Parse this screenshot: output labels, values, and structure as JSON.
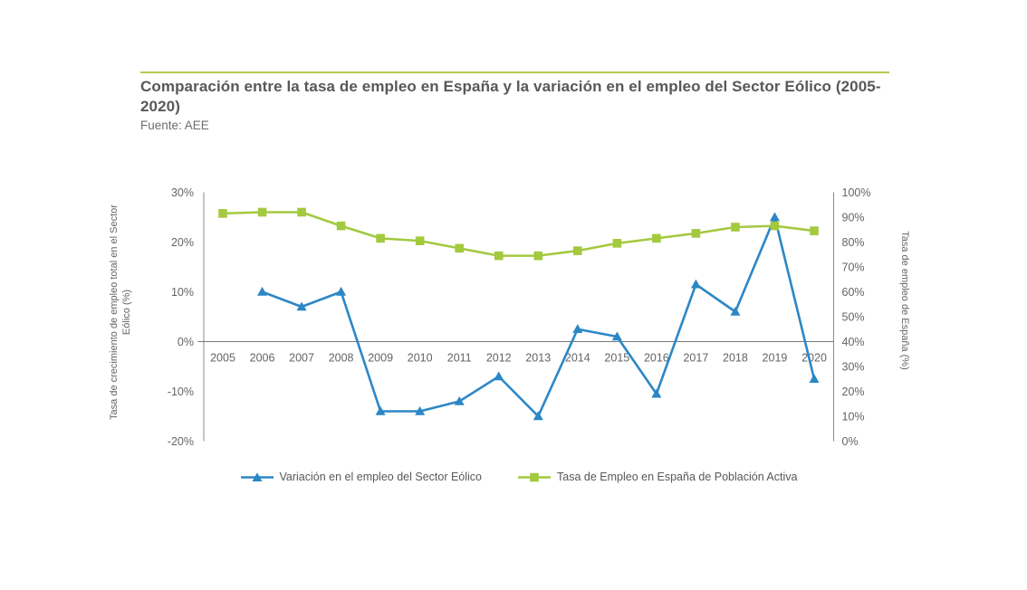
{
  "header": {
    "title": "Comparación entre la tasa de empleo en España y la variación en el empleo del Sector Eólico (2005-2020)",
    "source": "Fuente: AEE"
  },
  "colors": {
    "top_rule": "#b4cc4f",
    "wind_series_blue": "#2b87c6",
    "employment_series_green": "#a3c93f",
    "title_text": "#57585a",
    "axis_text": "#636468"
  },
  "chart_data": {
    "type": "line",
    "title": "Comparación entre la tasa de empleo en España y la variación en el empleo del Sector Eólico (2005-2020)",
    "source": "Fuente: AEE",
    "categories": [
      "2005",
      "2006",
      "2007",
      "2008",
      "2009",
      "2010",
      "2011",
      "2012",
      "2013",
      "2014",
      "2015",
      "2016",
      "2017",
      "2018",
      "2019",
      "2020"
    ],
    "series": [
      {
        "name": "Variación en el empleo del Sector Eólico",
        "axis": "left",
        "color": "#2b87c6",
        "marker": "triangle",
        "values": [
          null,
          10,
          7,
          10,
          -14,
          -14,
          -12,
          -7,
          -15,
          2.5,
          1,
          -10.5,
          11.5,
          6,
          25,
          -7.5
        ]
      },
      {
        "name": "Tasa de Empleo en España de Población Activa",
        "axis": "right",
        "color": "#a3c93f",
        "marker": "square",
        "values": [
          91.5,
          92,
          92,
          86.5,
          81.5,
          80.5,
          77.5,
          74.5,
          74.5,
          76.5,
          79.5,
          81.5,
          83.5,
          86,
          86.5,
          84.5
        ]
      }
    ],
    "left_axis": {
      "label": "Tasa de crecimiento de empleo total en el Sector Eólico (%)",
      "min": -20,
      "max": 30,
      "step": 10,
      "tick_values": [
        30,
        20,
        10,
        0,
        -10,
        -20
      ],
      "tick_labels": [
        "30%",
        "20%",
        "10%",
        "0%",
        "-10%",
        "-20%"
      ]
    },
    "right_axis": {
      "label": "Tasa de empleo de España (%)",
      "min": 0,
      "max": 100,
      "step": 10,
      "tick_values": [
        100,
        90,
        80,
        70,
        60,
        50,
        40,
        30,
        20,
        10,
        0
      ],
      "tick_labels": [
        "100%",
        "90%",
        "80%",
        "70%",
        "60%",
        "50%",
        "40%",
        "30%",
        "20%",
        "10%",
        "0%"
      ]
    },
    "grid": "off",
    "legend_position": "bottom"
  }
}
